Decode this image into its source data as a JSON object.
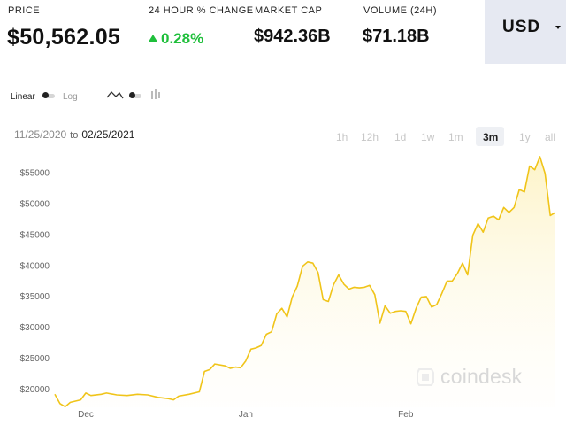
{
  "header": {
    "price_label": "PRICE",
    "price_value": "$50,562.05",
    "change_label": "24 HOUR % CHANGE",
    "change_value": "0.28%",
    "market_cap_label": "MARKET CAP",
    "market_cap_value": "$942.36B",
    "volume_label": "VOLUME (24H)",
    "volume_value": "$71.18B",
    "currency": "USD"
  },
  "toggles": {
    "linear_label": "Linear",
    "log_label": "Log",
    "scale_selected": "Linear",
    "chart_type_icons": [
      "line-chart-icon",
      "candlestick-chart-icon"
    ],
    "chart_type_selected": "line"
  },
  "date_range": {
    "start": "11/25/2020",
    "separator": "to",
    "end": "02/25/2021"
  },
  "periods": [
    "1h",
    "12h",
    "1d",
    "1w",
    "1m",
    "3m",
    "1y",
    "all"
  ],
  "active_period": "3m",
  "watermark": "coindesk",
  "colors": {
    "line": "#f0c419",
    "area_top": "#fdf3c6",
    "positive": "#1fbf3b",
    "currency_bg": "#e6e9f2"
  },
  "chart_data": {
    "type": "area",
    "title": "",
    "xlabel": "",
    "ylabel": "",
    "x_start": "2020-11-25",
    "x_end": "2021-02-25",
    "x_ticks": [
      "Dec",
      "Jan",
      "Feb"
    ],
    "x_tick_dates": [
      "2020-12-01",
      "2021-01-01",
      "2021-02-01"
    ],
    "y_ticks": [
      20000,
      25000,
      30000,
      35000,
      40000,
      45000,
      50000,
      55000
    ],
    "y_tick_labels": [
      "$20000",
      "$25000",
      "$30000",
      "$35000",
      "$40000",
      "$45000",
      "$50000",
      "$55000"
    ],
    "ylim": [
      17000,
      58500
    ],
    "grid": false,
    "series": [
      {
        "values": [
          [
            "2020-11-25",
            19100
          ],
          [
            "2020-11-26",
            17600
          ],
          [
            "2020-11-27",
            17100
          ],
          [
            "2020-11-28",
            17800
          ],
          [
            "2020-11-30",
            18200
          ],
          [
            "2020-12-01",
            19300
          ],
          [
            "2020-12-02",
            18900
          ],
          [
            "2020-12-04",
            19100
          ],
          [
            "2020-12-05",
            19300
          ],
          [
            "2020-12-07",
            19000
          ],
          [
            "2020-12-09",
            18900
          ],
          [
            "2020-12-11",
            19100
          ],
          [
            "2020-12-13",
            19000
          ],
          [
            "2020-12-15",
            18600
          ],
          [
            "2020-12-17",
            18400
          ],
          [
            "2020-12-18",
            18200
          ],
          [
            "2020-12-19",
            18800
          ],
          [
            "2020-12-21",
            19100
          ],
          [
            "2020-12-23",
            19500
          ],
          [
            "2020-12-24",
            22800
          ],
          [
            "2020-12-25",
            23100
          ],
          [
            "2020-12-26",
            24000
          ],
          [
            "2020-12-28",
            23700
          ],
          [
            "2020-12-29",
            23300
          ],
          [
            "2020-12-30",
            23500
          ],
          [
            "2020-12-31",
            23400
          ],
          [
            "2021-01-01",
            24500
          ],
          [
            "2021-01-02",
            26400
          ],
          [
            "2021-01-03",
            26600
          ],
          [
            "2021-01-04",
            27000
          ],
          [
            "2021-01-05",
            28800
          ],
          [
            "2021-01-06",
            29200
          ],
          [
            "2021-01-07",
            32100
          ],
          [
            "2021-01-08",
            33000
          ],
          [
            "2021-01-09",
            31600
          ],
          [
            "2021-01-10",
            34800
          ],
          [
            "2021-01-11",
            36600
          ],
          [
            "2021-01-12",
            39800
          ],
          [
            "2021-01-13",
            40500
          ],
          [
            "2021-01-14",
            40300
          ],
          [
            "2021-01-15",
            38800
          ],
          [
            "2021-01-16",
            34400
          ],
          [
            "2021-01-17",
            34100
          ],
          [
            "2021-01-18",
            36800
          ],
          [
            "2021-01-19",
            38400
          ],
          [
            "2021-01-20",
            36900
          ],
          [
            "2021-01-21",
            36100
          ],
          [
            "2021-01-22",
            36400
          ],
          [
            "2021-01-23",
            36300
          ],
          [
            "2021-01-24",
            36400
          ],
          [
            "2021-01-25",
            36700
          ],
          [
            "2021-01-26",
            35200
          ],
          [
            "2021-01-27",
            30600
          ],
          [
            "2021-01-28",
            33400
          ],
          [
            "2021-01-29",
            32200
          ],
          [
            "2021-01-30",
            32500
          ],
          [
            "2021-01-31",
            32600
          ],
          [
            "2021-02-01",
            32500
          ],
          [
            "2021-02-02",
            30500
          ],
          [
            "2021-02-03",
            33000
          ],
          [
            "2021-02-04",
            34800
          ],
          [
            "2021-02-05",
            34900
          ],
          [
            "2021-02-06",
            33200
          ],
          [
            "2021-02-07",
            33600
          ],
          [
            "2021-02-08",
            35400
          ],
          [
            "2021-02-09",
            37400
          ],
          [
            "2021-02-10",
            37400
          ],
          [
            "2021-02-11",
            38600
          ],
          [
            "2021-02-12",
            40300
          ],
          [
            "2021-02-13",
            38400
          ],
          [
            "2021-02-14",
            44800
          ],
          [
            "2021-02-15",
            46700
          ],
          [
            "2021-02-16",
            45300
          ],
          [
            "2021-02-17",
            47600
          ],
          [
            "2021-02-18",
            47900
          ],
          [
            "2021-02-19",
            47300
          ],
          [
            "2021-02-20",
            49300
          ],
          [
            "2021-02-21",
            48500
          ],
          [
            "2021-02-22",
            49300
          ],
          [
            "2021-02-23",
            52200
          ],
          [
            "2021-02-24",
            51800
          ],
          [
            "2021-02-25",
            56000
          ],
          [
            "2021-02-26",
            55400
          ],
          [
            "2021-02-27",
            57500
          ],
          [
            "2021-02-28",
            54800
          ],
          [
            "2021-03-01",
            48000
          ],
          [
            "2021-03-02",
            48500
          ]
        ]
      }
    ]
  }
}
